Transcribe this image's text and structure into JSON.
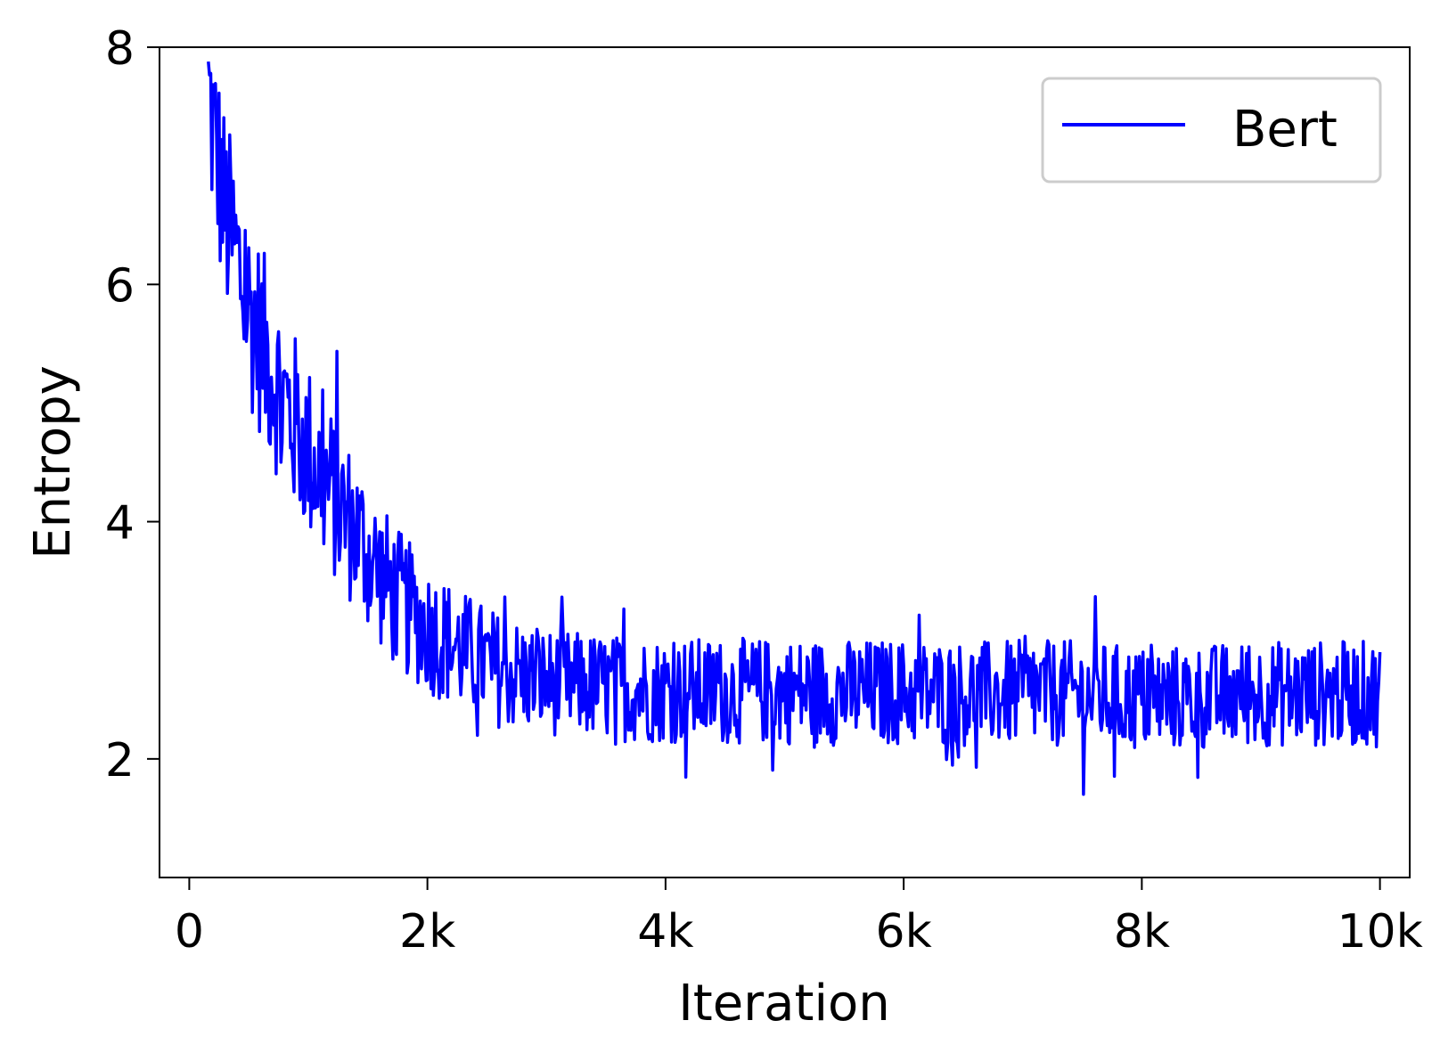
{
  "chart_data": {
    "type": "line",
    "title": "",
    "xlabel": "Iteration",
    "ylabel": "Entropy",
    "xlim": [
      -250,
      10250
    ],
    "ylim": [
      1,
      8
    ],
    "xticks": [
      {
        "value": 0,
        "label": "0"
      },
      {
        "value": 2000,
        "label": "2k"
      },
      {
        "value": 4000,
        "label": "4k"
      },
      {
        "value": 6000,
        "label": "6k"
      },
      {
        "value": 8000,
        "label": "8k"
      },
      {
        "value": 10000,
        "label": "10k"
      }
    ],
    "yticks": [
      {
        "value": 2,
        "label": "2"
      },
      {
        "value": 4,
        "label": "4"
      },
      {
        "value": 6,
        "label": "6"
      },
      {
        "value": 8,
        "label": "8"
      }
    ],
    "grid": false,
    "legend_position": "top-right",
    "series": [
      {
        "name": "Bert",
        "color": "#0000ff",
        "x_start": 160,
        "x_end": 10000,
        "description_note": "",
        "trend": {
          "x": [
            160,
            300,
            500,
            800,
            1100,
            1400,
            1700,
            2000,
            2300,
            2600,
            3000,
            3500,
            4000,
            4500,
            5000,
            5500,
            6000,
            6500,
            7000,
            7500,
            8000,
            8500,
            9000,
            9500,
            10000
          ],
          "y": [
            7.6,
            6.6,
            5.8,
            5.0,
            4.4,
            3.9,
            3.4,
            3.1,
            2.9,
            2.75,
            2.65,
            2.6,
            2.58,
            2.57,
            2.57,
            2.56,
            2.56,
            2.55,
            2.55,
            2.55,
            2.5,
            2.52,
            2.55,
            2.55,
            2.55
          ]
        },
        "noise_amplitude": {
          "x": [
            160,
            1000,
            2000,
            3000,
            10000
          ],
          "y": [
            0.9,
            0.75,
            0.55,
            0.45,
            0.45
          ]
        },
        "extremes": {
          "max_y": 8.0,
          "min_y": 1.25,
          "min_at_x": 8700
        }
      }
    ]
  }
}
